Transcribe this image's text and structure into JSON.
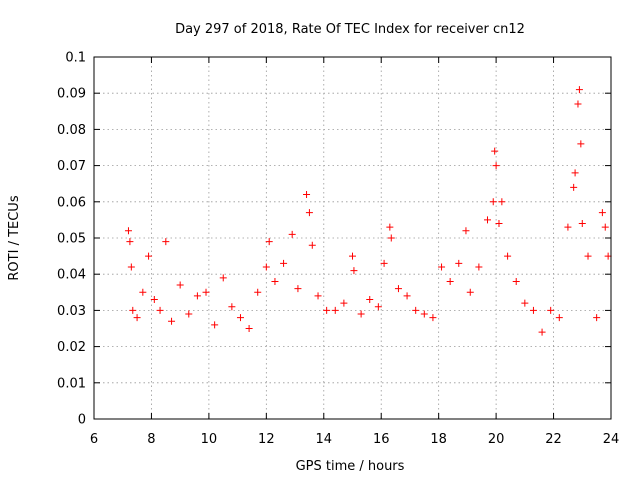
{
  "chart_data": {
    "type": "scatter",
    "title": "Day 297 of 2018, Rate Of TEC Index for receiver cn12",
    "xlabel": "GPS time / hours",
    "ylabel": "ROTI / TECUs",
    "xlim": [
      6,
      24
    ],
    "ylim": [
      0,
      0.1
    ],
    "xticks": [
      6,
      8,
      10,
      12,
      14,
      16,
      18,
      20,
      22,
      24
    ],
    "xtick_labels": [
      "6",
      "8",
      "10",
      "12",
      "14",
      "16",
      "18",
      "20",
      "22",
      "24"
    ],
    "yticks": [
      0,
      0.01,
      0.02,
      0.03,
      0.04,
      0.05,
      0.06,
      0.07,
      0.08,
      0.09,
      0.1
    ],
    "ytick_labels": [
      "0",
      "0.01",
      "0.02",
      "0.03",
      "0.04",
      "0.05",
      "0.06",
      "0.07",
      "0.08",
      "0.09",
      "0.1"
    ],
    "grid": true,
    "marker": "+",
    "marker_color": "#ff0000",
    "series": [
      {
        "name": "cn12",
        "x": [
          7.2,
          7.25,
          7.3,
          7.35,
          7.5,
          7.7,
          7.9,
          8.1,
          8.3,
          8.5,
          8.7,
          9.0,
          9.3,
          9.6,
          9.9,
          10.2,
          10.5,
          10.8,
          11.1,
          11.4,
          11.7,
          12.0,
          12.1,
          12.3,
          12.6,
          12.9,
          13.1,
          13.4,
          13.5,
          13.6,
          13.8,
          14.1,
          14.4,
          14.7,
          15.0,
          15.05,
          15.3,
          15.6,
          15.9,
          16.1,
          16.3,
          16.35,
          16.6,
          16.9,
          17.2,
          17.5,
          17.8,
          18.1,
          18.4,
          18.7,
          18.95,
          19.1,
          19.4,
          19.7,
          19.9,
          19.95,
          20.0,
          20.1,
          20.2,
          20.4,
          20.7,
          21.0,
          21.3,
          21.6,
          21.9,
          22.2,
          22.5,
          22.7,
          22.75,
          22.85,
          22.9,
          22.95,
          23.0,
          23.2,
          23.5,
          23.7,
          23.8,
          23.9
        ],
        "y": [
          0.052,
          0.049,
          0.042,
          0.03,
          0.028,
          0.035,
          0.045,
          0.033,
          0.03,
          0.049,
          0.027,
          0.037,
          0.029,
          0.034,
          0.035,
          0.026,
          0.039,
          0.031,
          0.028,
          0.025,
          0.035,
          0.042,
          0.049,
          0.038,
          0.043,
          0.051,
          0.036,
          0.062,
          0.057,
          0.048,
          0.034,
          0.03,
          0.03,
          0.032,
          0.045,
          0.041,
          0.029,
          0.033,
          0.031,
          0.043,
          0.053,
          0.05,
          0.036,
          0.034,
          0.03,
          0.029,
          0.028,
          0.042,
          0.038,
          0.043,
          0.052,
          0.035,
          0.042,
          0.055,
          0.06,
          0.074,
          0.07,
          0.054,
          0.06,
          0.045,
          0.038,
          0.032,
          0.03,
          0.024,
          0.03,
          0.028,
          0.053,
          0.064,
          0.068,
          0.087,
          0.091,
          0.076,
          0.054,
          0.045,
          0.028,
          0.057,
          0.053,
          0.045
        ]
      }
    ]
  }
}
